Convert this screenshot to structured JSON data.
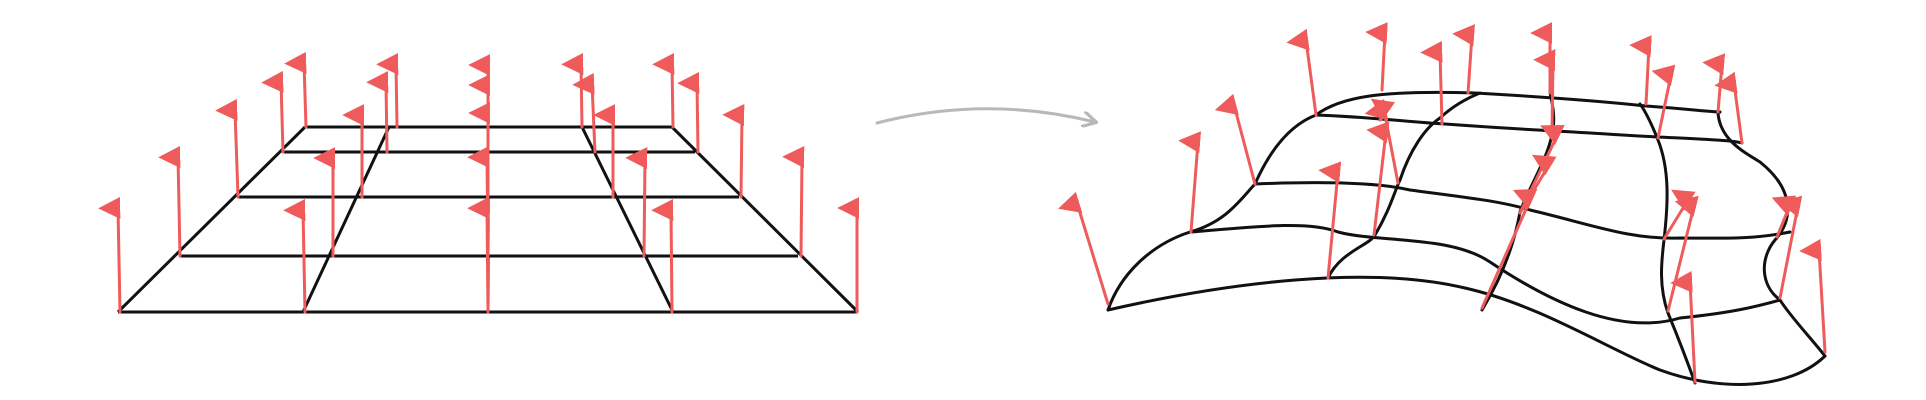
{
  "figure": {
    "panels": [
      {
        "id": "flat-grid",
        "description_visible_text": ""
      },
      {
        "id": "deformed-surface",
        "description_visible_text": ""
      }
    ]
  },
  "colors": {
    "background": "#ffffff",
    "grid_line": "#111111",
    "normal_vector": "#ef5b5b",
    "transition_arrow": "#b8b8b8"
  },
  "icons": {
    "transition": "curved-arrow-icon",
    "normal": "normal-vector-arrow-icon"
  }
}
